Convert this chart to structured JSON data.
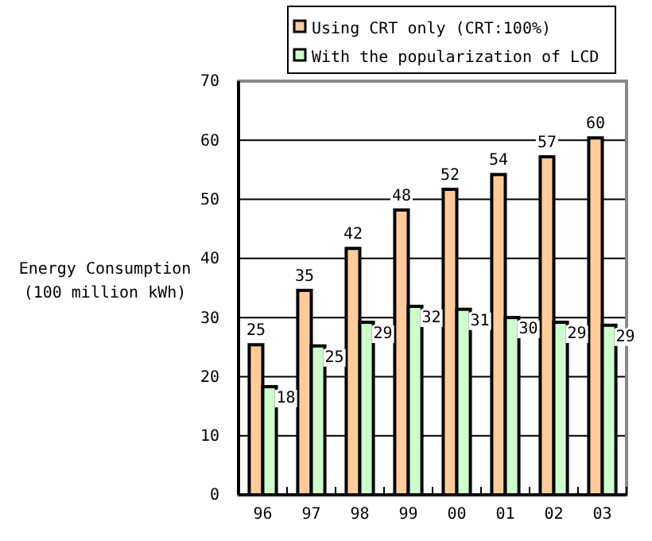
{
  "chart_data": {
    "type": "bar",
    "ylabel": "Energy Consumption\n(100 million kWh)",
    "categories": [
      "96",
      "97",
      "98",
      "99",
      "00",
      "01",
      "02",
      "03"
    ],
    "series": [
      {
        "name": "Using CRT only (CRT:100%)",
        "color": "#ffcc99",
        "values": [
          25.4,
          34.6,
          41.7,
          48.2,
          51.7,
          54.2,
          57.2,
          60.4
        ],
        "value_labels": [
          "25",
          "35",
          "42",
          "48",
          "52",
          "54",
          "57",
          "60"
        ]
      },
      {
        "name": "With the popularization of LCD",
        "color": "#ccffcc",
        "values": [
          18.3,
          25.2,
          29.2,
          31.9,
          31.4,
          30.0,
          29.2,
          28.7
        ],
        "value_labels": [
          "18",
          "25",
          "29",
          "32",
          "31",
          "30",
          "29",
          "29"
        ]
      }
    ],
    "ylim": [
      0,
      70
    ],
    "yticks": [
      0,
      10,
      20,
      30,
      40,
      50,
      60,
      70
    ],
    "grid": "y",
    "legend": "top right"
  }
}
